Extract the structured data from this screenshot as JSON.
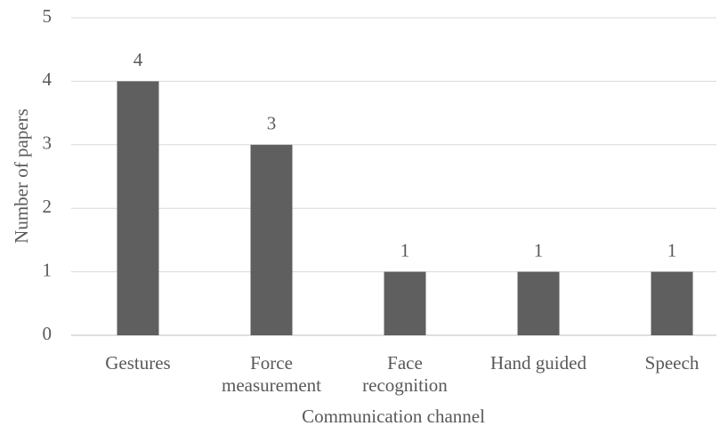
{
  "chart_data": {
    "type": "bar",
    "x_label": "Communication channel",
    "y_label": "Number of papers",
    "categories": [
      "Gestures",
      "Force measurement",
      "Face recognition",
      "Hand guided",
      "Speech"
    ],
    "values": [
      4,
      3,
      1,
      1,
      1
    ],
    "color": "#5f5f5f",
    "ylim": [
      0,
      5
    ],
    "yticks": [
      0,
      1,
      2,
      3,
      4,
      5
    ],
    "grid": true,
    "data_labels": true
  }
}
